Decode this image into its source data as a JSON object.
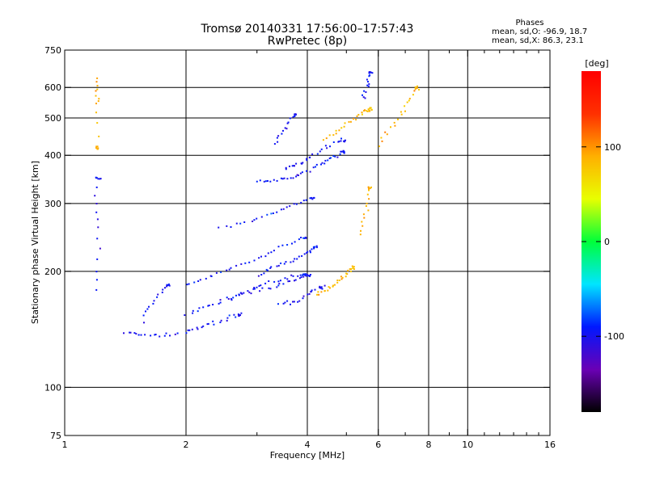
{
  "header": {
    "title": "Tromsø 20140331 17:56:00–17:57:43",
    "subtitle": "RwPretec (8p)"
  },
  "phases_box": {
    "heading": "Phases",
    "line_o": "mean, sd,O:  -96.9, 18.7",
    "line_x": "mean, sd,X:  86.3, 23.1"
  },
  "colorbar": {
    "label": "[deg]",
    "range": [
      -180,
      180
    ],
    "tick_labels": [
      "100",
      "0",
      "-100"
    ],
    "colors": [
      "#000000",
      "#6a00b5",
      "#0018ff",
      "#00e5ff",
      "#00ff3a",
      "#e8ff00",
      "#ffb000",
      "#ff3000",
      "#ff0000"
    ]
  },
  "chart_data": {
    "type": "scatter",
    "title": "Tromsø 20140331 17:56:00–17:57:43",
    "subtitle": "RwPretec (8p)",
    "xlabel": "Frequency [MHz]",
    "ylabel": "Stationary phase Virtual Height [km]",
    "x_scale": "log",
    "y_scale": "log",
    "xlim": [
      1,
      16
    ],
    "ylim": [
      75,
      750
    ],
    "x_ticks": [
      1,
      2,
      4,
      6,
      8,
      10,
      16
    ],
    "x_tick_labels": [
      "1",
      "2",
      "4",
      "6",
      "8",
      "10",
      "16"
    ],
    "x_minor_ticks": [
      3,
      5,
      7,
      9,
      11,
      12,
      13,
      14,
      15
    ],
    "y_ticks": [
      75,
      100,
      200,
      300,
      400,
      500,
      600,
      750
    ],
    "y_tick_labels": [
      "75",
      "100",
      "200",
      "300",
      "400",
      "500",
      "600",
      "750"
    ],
    "x_grid_lines": [
      2,
      4,
      6,
      8,
      10
    ],
    "y_grid_lines": [
      100,
      200,
      300,
      400,
      500,
      600
    ],
    "grid": true,
    "color_variable": "phase [deg]",
    "color_range": [
      -180,
      180
    ],
    "series": [
      {
        "name": "O",
        "color_value": -96.9,
        "color_spread": 18.7,
        "traces": [
          {
            "x": [
              1.4,
              1.55,
              1.75,
              2.0,
              2.2,
              2.45,
              2.7
            ],
            "y": [
              140,
              138,
              137,
              140,
              145,
              150,
              155
            ]
          },
          {
            "x": [
              1.55,
              1.65,
              1.8
            ],
            "y": [
              150,
              170,
              185
            ]
          },
          {
            "x": [
              2.0,
              2.25,
              2.5,
              2.8,
              3.1,
              3.5,
              3.9
            ],
            "y": [
              155,
              163,
              170,
              178,
              185,
              192,
              198
            ]
          },
          {
            "x": [
              2.0,
              2.3,
              2.6,
              3.0,
              3.4,
              3.9
            ],
            "y": [
              185,
              195,
              205,
              218,
              230,
              245
            ]
          },
          {
            "x": [
              2.6,
              2.9,
              3.3,
              3.7,
              4.0
            ],
            "y": [
              170,
              178,
              183,
              190,
              196
            ]
          },
          {
            "x": [
              3.0,
              3.3,
              3.6,
              3.9,
              4.15
            ],
            "y": [
              196,
              206,
              213,
              222,
              232
            ]
          },
          {
            "x": [
              3.4,
              3.7,
              4.0,
              4.3
            ],
            "y": [
              166,
              168,
              176,
              183
            ]
          },
          {
            "x": [
              3.0,
              3.3,
              3.6,
              3.9,
              4.3,
              4.6,
              4.9
            ],
            "y": [
              345,
              345,
              352,
              362,
              378,
              395,
              410
            ]
          },
          {
            "x": [
              3.5,
              3.75,
              4.0,
              4.4,
              4.9
            ],
            "y": [
              372,
              380,
              395,
              420,
              440
            ]
          },
          {
            "x": [
              2.4,
              2.9,
              3.3,
              3.7,
              4.1
            ],
            "y": [
              260,
              272,
              285,
              300,
              312
            ]
          },
          {
            "x": [
              3.3,
              3.5,
              3.7
            ],
            "y": [
              430,
              470,
              510
            ]
          },
          {
            "x": [
              5.5,
              5.6,
              5.7
            ],
            "y": [
              560,
              610,
              660
            ]
          },
          {
            "x": [
              1.2,
              1.2,
              1.2
            ],
            "y": [
              180,
              260,
              350
            ]
          }
        ]
      },
      {
        "name": "X",
        "color_value": 86.3,
        "color_spread": 23.1,
        "traces": [
          {
            "x": [
              4.2,
              4.45,
              4.7,
              4.95,
              5.15
            ],
            "y": [
              175,
              180,
              188,
              195,
              205
            ]
          },
          {
            "x": [
              4.4,
              4.8,
              5.2,
              5.5,
              5.7
            ],
            "y": [
              440,
              470,
              500,
              520,
              530
            ]
          },
          {
            "x": [
              5.4,
              5.55,
              5.7
            ],
            "y": [
              250,
              290,
              330
            ]
          },
          {
            "x": [
              6.0,
              6.5,
              7.0,
              7.4
            ],
            "y": [
              430,
              480,
              540,
              600
            ]
          },
          {
            "x": [
              1.2,
              1.2,
              1.2
            ],
            "y": [
              550,
              640,
              420
            ]
          }
        ]
      }
    ]
  }
}
